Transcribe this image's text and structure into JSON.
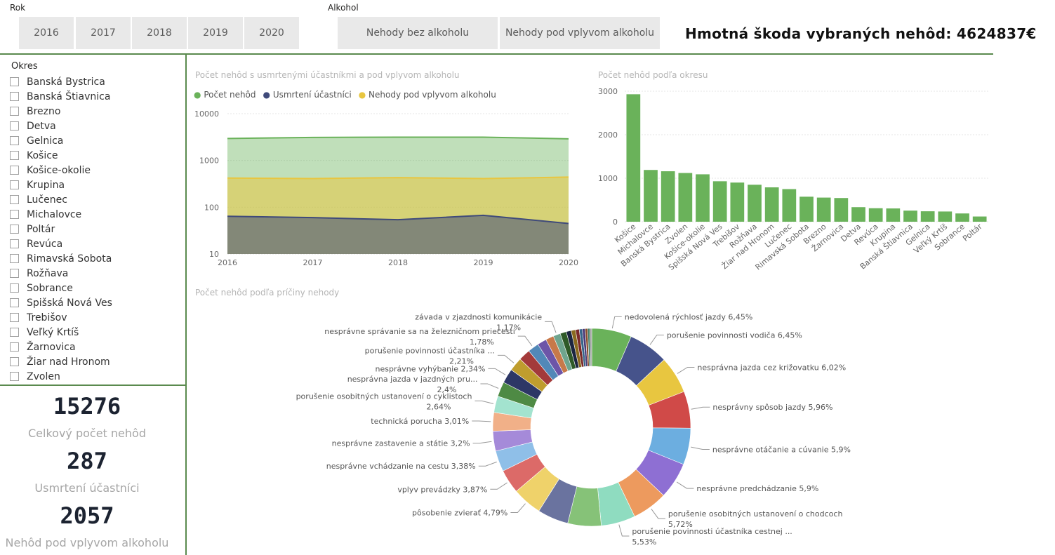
{
  "rok": {
    "label": "Rok",
    "years": [
      "2016",
      "2017",
      "2018",
      "2019",
      "2020"
    ]
  },
  "alkohol": {
    "label": "Alkohol",
    "options": [
      "Nehody bez alkoholu",
      "Nehody pod vplyvom alkoholu"
    ]
  },
  "header": {
    "damage_label": "Hmotná škoda vybraných nehôd: 4624837€"
  },
  "okres": {
    "label": "Okres",
    "items": [
      "Banská Bystrica",
      "Banská Štiavnica",
      "Brezno",
      "Detva",
      "Gelnica",
      "Košice",
      "Košice-okolie",
      "Krupina",
      "Lučenec",
      "Michalovce",
      "Poltár",
      "Revúca",
      "Rimavská Sobota",
      "Rožňava",
      "Sobrance",
      "Spišská Nová Ves",
      "Trebišov",
      "Veľký Krtíš",
      "Žarnovica",
      "Žiar nad Hronom",
      "Zvolen"
    ]
  },
  "cards": [
    {
      "value": "15276",
      "label": "Celkový počet nehôd"
    },
    {
      "value": "287",
      "label": "Usmrtení účastníci"
    },
    {
      "value": "2057",
      "label": "Nehôd pod vplyvom alkoholu"
    }
  ],
  "colors": {
    "accent_line": "#5a8a4e",
    "green": "#6ab25a",
    "navy": "#3f4a7a",
    "yellow": "#e8c640"
  },
  "chart_data": [
    {
      "type": "area",
      "title": "Počet nehôd s usmrtenými účastníkmi a pod vplyvom alkoholu",
      "x": [
        "2016",
        "2017",
        "2018",
        "2019",
        "2020"
      ],
      "yscale": "log",
      "ylim": [
        10,
        10000
      ],
      "yticks": [
        "10",
        "100",
        "1000",
        "10000"
      ],
      "series": [
        {
          "name": "Počet nehôd",
          "color": "#6ab25a",
          "values": [
            2950,
            3100,
            3150,
            3150,
            2900
          ]
        },
        {
          "name": "Usmrtení účastníci",
          "color": "#3f4a7a",
          "values": [
            64,
            60,
            54,
            67,
            45
          ]
        },
        {
          "name": "Nehody pod vplyvom alkoholu",
          "color": "#e8c640",
          "values": [
            420,
            410,
            430,
            410,
            440
          ]
        }
      ],
      "legend": "top-left",
      "grid": true
    },
    {
      "type": "bar",
      "title": "Počet nehôd podľa okresu",
      "categories": [
        "Košice",
        "Michalovce",
        "Banská Bystrica",
        "Zvolen",
        "Košice-okolie",
        "Spišská Nová Ves",
        "Trebišov",
        "Rožňava",
        "Žiar nad Hronom",
        "Lučenec",
        "Rimavská Sobota",
        "Brezno",
        "Žarnovica",
        "Detva",
        "Revúca",
        "Krupina",
        "Banská Štiavnica",
        "Gelnica",
        "Veľký Krtíš",
        "Sobrance",
        "Poltár"
      ],
      "values": [
        2930,
        1190,
        1160,
        1120,
        1090,
        930,
        900,
        850,
        790,
        750,
        575,
        555,
        545,
        335,
        310,
        305,
        255,
        240,
        235,
        190,
        120
      ],
      "ylim": [
        0,
        3000
      ],
      "yticks": [
        "0",
        "1000",
        "2000",
        "3000"
      ],
      "color": "#6ab25a",
      "grid": true
    },
    {
      "type": "pie",
      "title": "Počet nehôd podľa príčiny nehody",
      "donut": true,
      "slices": [
        {
          "label": "nedovolená rýchlosť jazdy 6,45%",
          "value": 6.45,
          "color": "#6ab25a"
        },
        {
          "label": "porušenie povinnosti vodiča 6,45%",
          "value": 6.45,
          "color": "#46538b"
        },
        {
          "label": "nesprávna jazda cez križovatku 6,02%",
          "value": 6.02,
          "color": "#e8c640"
        },
        {
          "label": "nesprávny spôsob jazdy 5,96%",
          "value": 5.96,
          "color": "#d04a48"
        },
        {
          "label": "nesprávne otáčanie a cúvanie 5,9%",
          "value": 5.9,
          "color": "#6caee0"
        },
        {
          "label": "nesprávne predchádzanie 5,9%",
          "value": 5.9,
          "color": "#8e6fd3"
        },
        {
          "label": "porušenie osobitných ustanovení o chodcoch 5,72%",
          "value": 5.72,
          "color": "#ed9a5e"
        },
        {
          "label": "porušenie povinnosti účastníka cestnej ... 5,53%",
          "value": 5.53,
          "color": "#8fdcc0"
        },
        {
          "label": "",
          "value": 5.4,
          "color": "#86c278"
        },
        {
          "label": "",
          "value": 5.0,
          "color": "#6a739f"
        },
        {
          "label": "pôsobenie zvierať 4,79%",
          "value": 4.79,
          "color": "#efd26a"
        },
        {
          "label": "vplyv prevádzky 3,87%",
          "value": 3.87,
          "color": "#dc6a68"
        },
        {
          "label": "nesprávne vchádzanie na cestu 3,38%",
          "value": 3.38,
          "color": "#8fbfe8"
        },
        {
          "label": "nesprávne zastavenie a státie 3,2%",
          "value": 3.2,
          "color": "#a58ad9"
        },
        {
          "label": "technická porucha 3,01%",
          "value": 3.01,
          "color": "#f1b088"
        },
        {
          "label": "porušenie osobitných ustanovení o cyklistoch 2,64%",
          "value": 2.64,
          "color": "#a3e3cf"
        },
        {
          "label": "nesprávna jazda v jazdných pru... 2,4%",
          "value": 2.4,
          "color": "#4e8a44"
        },
        {
          "label": "nesprávne vyhýbanie 2,34%",
          "value": 2.34,
          "color": "#2d3766"
        },
        {
          "label": "porušenie povinnosti účastníka ... 2,21%",
          "value": 2.21,
          "color": "#bf9d2e"
        },
        {
          "label": "",
          "value": 1.9,
          "color": "#a33a3a"
        },
        {
          "label": "nesprávne správanie sa na železničnom priecestí 1,78%",
          "value": 1.78,
          "color": "#5288b8"
        },
        {
          "label": "",
          "value": 1.5,
          "color": "#6d55a8"
        },
        {
          "label": "",
          "value": 1.3,
          "color": "#c7794a"
        },
        {
          "label": "závada v zjazdnosti komunikácie 1,17%",
          "value": 1.17,
          "color": "#6fa58e"
        },
        {
          "label": "",
          "value": 1.0,
          "color": "#2f5a28"
        },
        {
          "label": "",
          "value": 0.8,
          "color": "#1c2540"
        },
        {
          "label": "",
          "value": 0.7,
          "color": "#8a6a1f"
        },
        {
          "label": "",
          "value": 0.6,
          "color": "#7a2a2a"
        },
        {
          "label": "",
          "value": 0.5,
          "color": "#36648a"
        },
        {
          "label": "",
          "value": 0.45,
          "color": "#4a3a78"
        },
        {
          "label": "",
          "value": 0.4,
          "color": "#8a4f2e"
        },
        {
          "label": "",
          "value": 0.35,
          "color": "#3f7a64"
        },
        {
          "label": "",
          "value": 0.3,
          "color": "#999999"
        }
      ]
    }
  ]
}
